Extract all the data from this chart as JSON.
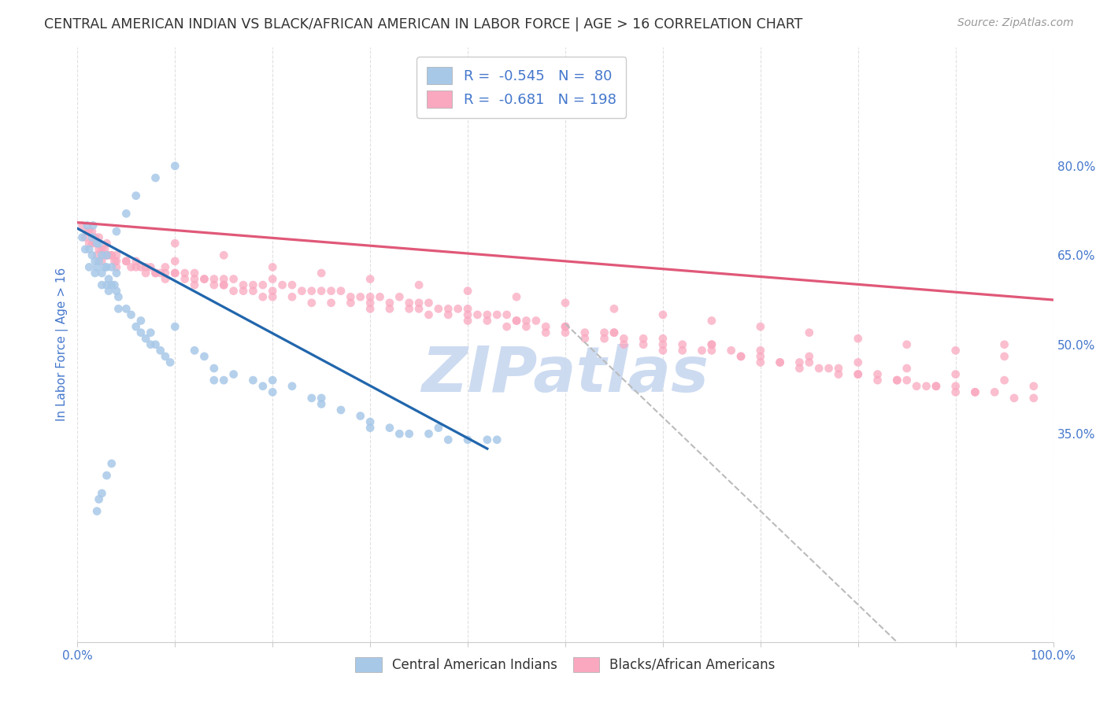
{
  "title": "CENTRAL AMERICAN INDIAN VS BLACK/AFRICAN AMERICAN IN LABOR FORCE | AGE > 16 CORRELATION CHART",
  "source": "Source: ZipAtlas.com",
  "ylabel": "In Labor Force | Age > 16",
  "xlim": [
    0.0,
    1.0
  ],
  "ylim": [
    0.0,
    1.0
  ],
  "xtick_positions": [
    0.0,
    0.1,
    0.2,
    0.3,
    0.4,
    0.5,
    0.6,
    0.7,
    0.8,
    0.9,
    1.0
  ],
  "xticklabels": [
    "0.0%",
    "",
    "",
    "",
    "",
    "",
    "",
    "",
    "",
    "",
    "100.0%"
  ],
  "ytick_labels_right": [
    "35.0%",
    "50.0%",
    "65.0%",
    "80.0%"
  ],
  "ytick_vals_right": [
    0.35,
    0.5,
    0.65,
    0.8
  ],
  "legend_blue_R": "-0.545",
  "legend_blue_N": "80",
  "legend_pink_R": "-0.681",
  "legend_pink_N": "198",
  "blue_scatter_color": "#a8c8e8",
  "blue_line_color": "#2166ac",
  "pink_scatter_color": "#f9a8c0",
  "pink_line_color": "#e05878",
  "dashed_line_color": "#bbbbbb",
  "watermark_text": "ZIPatlas",
  "watermark_color": "#c8d8f0",
  "background_color": "#ffffff",
  "grid_color": "#dddddd",
  "title_color": "#333333",
  "axis_label_color": "#4477cc",
  "blue_trend": [
    0.0,
    0.695,
    0.42,
    0.325
  ],
  "pink_trend": [
    0.0,
    0.705,
    1.0,
    0.575
  ],
  "dashed_line": [
    0.5,
    0.535,
    0.84,
    0.0
  ],
  "blue_points_x": [
    0.005,
    0.008,
    0.01,
    0.012,
    0.012,
    0.015,
    0.015,
    0.016,
    0.018,
    0.018,
    0.02,
    0.02,
    0.022,
    0.022,
    0.025,
    0.025,
    0.025,
    0.028,
    0.03,
    0.03,
    0.03,
    0.032,
    0.032,
    0.035,
    0.035,
    0.038,
    0.04,
    0.04,
    0.042,
    0.042,
    0.05,
    0.055,
    0.06,
    0.065,
    0.065,
    0.07,
    0.075,
    0.075,
    0.08,
    0.085,
    0.09,
    0.095,
    0.1,
    0.12,
    0.13,
    0.14,
    0.14,
    0.15,
    0.16,
    0.18,
    0.19,
    0.2,
    0.2,
    0.22,
    0.24,
    0.25,
    0.25,
    0.27,
    0.29,
    0.3,
    0.3,
    0.32,
    0.33,
    0.34,
    0.36,
    0.37,
    0.38,
    0.4,
    0.42,
    0.43,
    0.1,
    0.08,
    0.06,
    0.05,
    0.04,
    0.035,
    0.03,
    0.025,
    0.022,
    0.02
  ],
  "blue_points_y": [
    0.68,
    0.66,
    0.7,
    0.66,
    0.63,
    0.68,
    0.65,
    0.7,
    0.64,
    0.62,
    0.67,
    0.63,
    0.64,
    0.67,
    0.6,
    0.62,
    0.65,
    0.63,
    0.6,
    0.63,
    0.65,
    0.59,
    0.61,
    0.63,
    0.6,
    0.6,
    0.59,
    0.62,
    0.58,
    0.56,
    0.56,
    0.55,
    0.53,
    0.54,
    0.52,
    0.51,
    0.5,
    0.52,
    0.5,
    0.49,
    0.48,
    0.47,
    0.53,
    0.49,
    0.48,
    0.46,
    0.44,
    0.44,
    0.45,
    0.44,
    0.43,
    0.44,
    0.42,
    0.43,
    0.41,
    0.41,
    0.4,
    0.39,
    0.38,
    0.37,
    0.36,
    0.36,
    0.35,
    0.35,
    0.35,
    0.36,
    0.34,
    0.34,
    0.34,
    0.34,
    0.8,
    0.78,
    0.75,
    0.72,
    0.69,
    0.3,
    0.28,
    0.25,
    0.24,
    0.22
  ],
  "pink_points_x": [
    0.005,
    0.008,
    0.01,
    0.012,
    0.015,
    0.015,
    0.018,
    0.02,
    0.02,
    0.022,
    0.025,
    0.025,
    0.028,
    0.03,
    0.03,
    0.032,
    0.035,
    0.038,
    0.04,
    0.04,
    0.05,
    0.055,
    0.06,
    0.065,
    0.07,
    0.075,
    0.08,
    0.085,
    0.09,
    0.09,
    0.1,
    0.1,
    0.11,
    0.12,
    0.12,
    0.13,
    0.14,
    0.15,
    0.15,
    0.16,
    0.17,
    0.18,
    0.19,
    0.2,
    0.2,
    0.21,
    0.22,
    0.23,
    0.24,
    0.25,
    0.26,
    0.27,
    0.28,
    0.29,
    0.3,
    0.31,
    0.32,
    0.33,
    0.34,
    0.35,
    0.36,
    0.37,
    0.38,
    0.39,
    0.4,
    0.41,
    0.42,
    0.43,
    0.44,
    0.45,
    0.46,
    0.47,
    0.48,
    0.5,
    0.52,
    0.54,
    0.55,
    0.56,
    0.58,
    0.6,
    0.62,
    0.64,
    0.65,
    0.67,
    0.68,
    0.7,
    0.72,
    0.74,
    0.75,
    0.77,
    0.78,
    0.8,
    0.82,
    0.84,
    0.85,
    0.87,
    0.88,
    0.9,
    0.92,
    0.95,
    0.012,
    0.018,
    0.022,
    0.028,
    0.035,
    0.04,
    0.05,
    0.06,
    0.07,
    0.08,
    0.09,
    0.1,
    0.11,
    0.12,
    0.13,
    0.14,
    0.15,
    0.16,
    0.17,
    0.18,
    0.19,
    0.2,
    0.22,
    0.24,
    0.26,
    0.28,
    0.3,
    0.32,
    0.34,
    0.36,
    0.38,
    0.4,
    0.42,
    0.44,
    0.46,
    0.48,
    0.5,
    0.52,
    0.54,
    0.56,
    0.58,
    0.6,
    0.62,
    0.65,
    0.68,
    0.7,
    0.72,
    0.74,
    0.76,
    0.78,
    0.8,
    0.82,
    0.84,
    0.86,
    0.88,
    0.9,
    0.92,
    0.94,
    0.96,
    0.98,
    0.1,
    0.15,
    0.2,
    0.25,
    0.3,
    0.35,
    0.4,
    0.45,
    0.5,
    0.55,
    0.6,
    0.65,
    0.7,
    0.75,
    0.8,
    0.85,
    0.9,
    0.95,
    0.3,
    0.35,
    0.4,
    0.45,
    0.5,
    0.55,
    0.6,
    0.65,
    0.7,
    0.75,
    0.8,
    0.85,
    0.9,
    0.95,
    0.98
  ],
  "pink_points_y": [
    0.7,
    0.68,
    0.69,
    0.67,
    0.69,
    0.67,
    0.68,
    0.67,
    0.65,
    0.68,
    0.66,
    0.64,
    0.66,
    0.65,
    0.67,
    0.65,
    0.65,
    0.64,
    0.65,
    0.63,
    0.64,
    0.63,
    0.64,
    0.63,
    0.63,
    0.63,
    0.62,
    0.62,
    0.63,
    0.61,
    0.62,
    0.64,
    0.62,
    0.62,
    0.6,
    0.61,
    0.61,
    0.61,
    0.6,
    0.61,
    0.6,
    0.6,
    0.6,
    0.61,
    0.59,
    0.6,
    0.6,
    0.59,
    0.59,
    0.59,
    0.59,
    0.59,
    0.58,
    0.58,
    0.58,
    0.58,
    0.57,
    0.58,
    0.57,
    0.57,
    0.57,
    0.56,
    0.56,
    0.56,
    0.56,
    0.55,
    0.55,
    0.55,
    0.55,
    0.54,
    0.54,
    0.54,
    0.53,
    0.53,
    0.52,
    0.52,
    0.52,
    0.51,
    0.51,
    0.5,
    0.5,
    0.49,
    0.5,
    0.49,
    0.48,
    0.48,
    0.47,
    0.47,
    0.47,
    0.46,
    0.46,
    0.45,
    0.45,
    0.44,
    0.44,
    0.43,
    0.43,
    0.43,
    0.42,
    0.5,
    0.69,
    0.67,
    0.66,
    0.65,
    0.65,
    0.64,
    0.64,
    0.63,
    0.62,
    0.62,
    0.62,
    0.62,
    0.61,
    0.61,
    0.61,
    0.6,
    0.6,
    0.59,
    0.59,
    0.59,
    0.58,
    0.58,
    0.58,
    0.57,
    0.57,
    0.57,
    0.56,
    0.56,
    0.56,
    0.55,
    0.55,
    0.54,
    0.54,
    0.53,
    0.53,
    0.52,
    0.52,
    0.51,
    0.51,
    0.5,
    0.5,
    0.49,
    0.49,
    0.49,
    0.48,
    0.47,
    0.47,
    0.46,
    0.46,
    0.45,
    0.45,
    0.44,
    0.44,
    0.43,
    0.43,
    0.42,
    0.42,
    0.42,
    0.41,
    0.41,
    0.67,
    0.65,
    0.63,
    0.62,
    0.61,
    0.6,
    0.59,
    0.58,
    0.57,
    0.56,
    0.55,
    0.54,
    0.53,
    0.52,
    0.51,
    0.5,
    0.49,
    0.48,
    0.57,
    0.56,
    0.55,
    0.54,
    0.53,
    0.52,
    0.51,
    0.5,
    0.49,
    0.48,
    0.47,
    0.46,
    0.45,
    0.44,
    0.43
  ]
}
